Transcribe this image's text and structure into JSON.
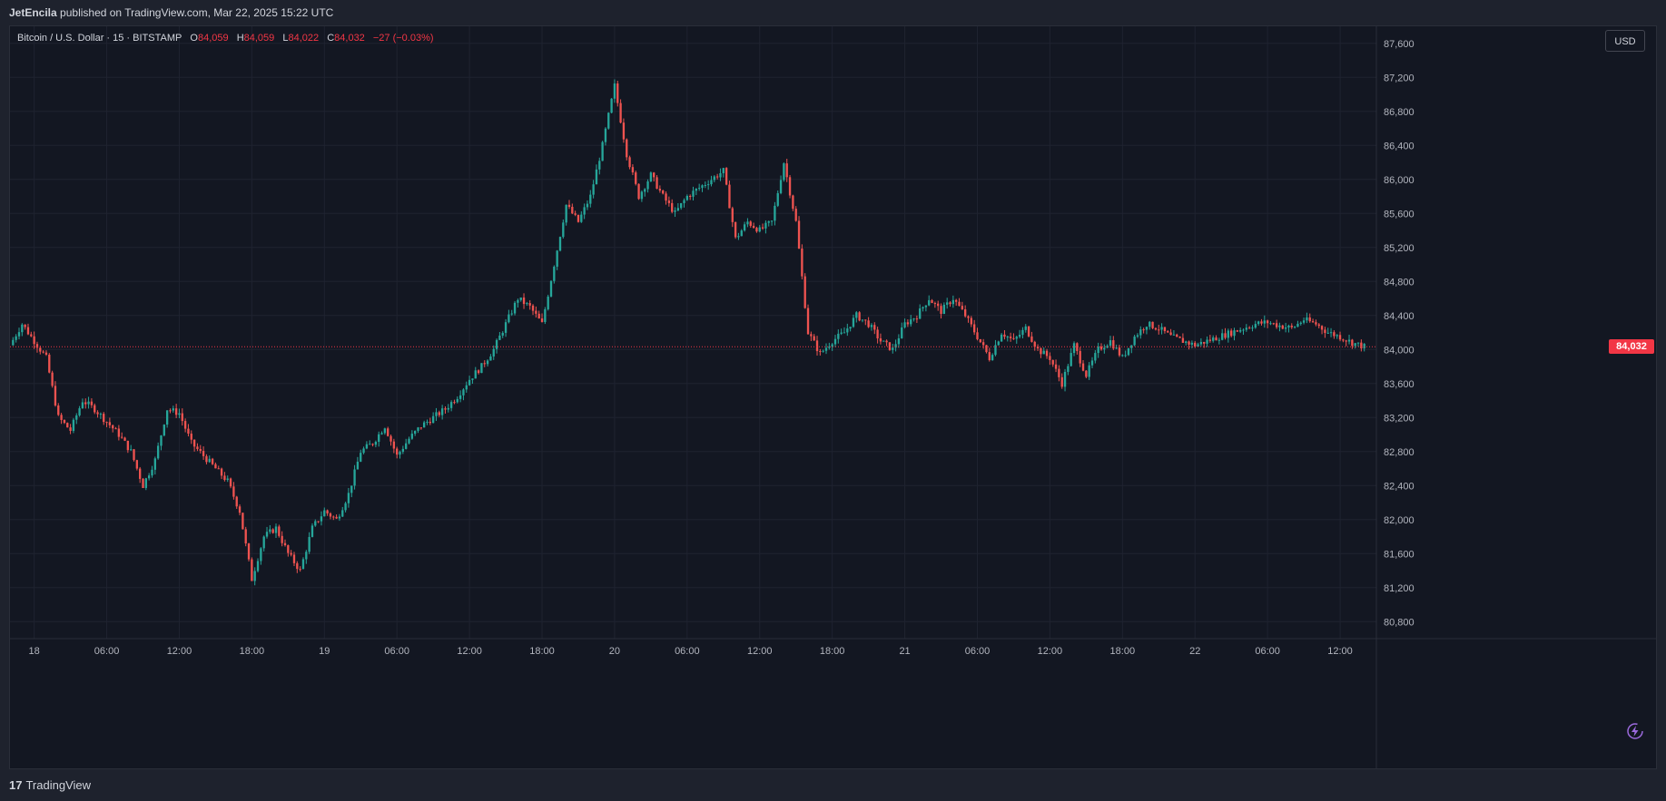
{
  "header": {
    "author": "JetEncila",
    "published_text": "published on TradingView.com, Mar 22, 2025 15:22 UTC"
  },
  "legend": {
    "symbol": "Bitcoin / U.S. Dollar · 15 · BITSTAMP",
    "o_label": "O",
    "o_value": "84,059",
    "h_label": "H",
    "h_value": "84,059",
    "l_label": "L",
    "l_value": "84,022",
    "c_label": "C",
    "c_value": "84,032",
    "change": "−27 (−0.03%)"
  },
  "currency_button": "USD",
  "last_price_label": "84,032",
  "footer": {
    "brand": "TradingView",
    "logo_icon": "tradingview-logo-icon"
  },
  "colors": {
    "up": "#26a69a",
    "down": "#ef5350",
    "background": "#131722",
    "grid": "#1f2330",
    "price_line": "#f23645"
  },
  "chart_data": {
    "type": "candlestick",
    "interval_minutes": 15,
    "ylim": [
      80600,
      87800
    ],
    "y_ticks": [
      "80,800",
      "81,200",
      "81,600",
      "82,000",
      "82,400",
      "82,800",
      "83,200",
      "83,600",
      "84,000",
      "84,400",
      "84,800",
      "85,200",
      "85,600",
      "86,000",
      "86,400",
      "86,800",
      "87,200",
      "87,600"
    ],
    "y_tick_values": [
      80800,
      81200,
      81600,
      82000,
      82400,
      82800,
      83200,
      83600,
      84000,
      84400,
      84800,
      85200,
      85600,
      86000,
      86400,
      86800,
      87200,
      87600
    ],
    "x_ticks": [
      "18",
      "06:00",
      "12:00",
      "18:00",
      "19",
      "06:00",
      "12:00",
      "18:00",
      "20",
      "06:00",
      "12:00",
      "18:00",
      "21",
      "06:00",
      "12:00",
      "18:00",
      "22",
      "06:00",
      "12:00"
    ],
    "x_tick_hours": [
      0,
      6,
      12,
      18,
      24,
      30,
      36,
      42,
      48,
      54,
      60,
      66,
      72,
      78,
      84,
      90,
      96,
      102,
      108
    ],
    "x_range_hours": [
      -2,
      111
    ],
    "last_price": 84032,
    "path": [
      [
        -2,
        84050
      ],
      [
        -1,
        84300
      ],
      [
        0,
        84100
      ],
      [
        1,
        83900
      ],
      [
        2,
        83200
      ],
      [
        3,
        83050
      ],
      [
        4,
        83400
      ],
      [
        5,
        83300
      ],
      [
        6,
        83150
      ],
      [
        7,
        83000
      ],
      [
        8,
        82800
      ],
      [
        9,
        82400
      ],
      [
        10,
        82700
      ],
      [
        11,
        83300
      ],
      [
        12,
        83250
      ],
      [
        13,
        82900
      ],
      [
        14,
        82750
      ],
      [
        15,
        82600
      ],
      [
        16,
        82450
      ],
      [
        17,
        82100
      ],
      [
        18,
        81300
      ],
      [
        19,
        81800
      ],
      [
        20,
        81900
      ],
      [
        21,
        81600
      ],
      [
        22,
        81400
      ],
      [
        23,
        81900
      ],
      [
        24,
        82100
      ],
      [
        25,
        82000
      ],
      [
        26,
        82300
      ],
      [
        27,
        82800
      ],
      [
        28,
        82900
      ],
      [
        29,
        83100
      ],
      [
        30,
        82750
      ],
      [
        31,
        82950
      ],
      [
        32,
        83100
      ],
      [
        33,
        83200
      ],
      [
        34,
        83300
      ],
      [
        35,
        83450
      ],
      [
        36,
        83650
      ],
      [
        37,
        83800
      ],
      [
        38,
        84000
      ],
      [
        39,
        84300
      ],
      [
        40,
        84600
      ],
      [
        41,
        84500
      ],
      [
        42,
        84300
      ],
      [
        43,
        85000
      ],
      [
        44,
        85700
      ],
      [
        45,
        85500
      ],
      [
        46,
        85800
      ],
      [
        47,
        86400
      ],
      [
        48,
        87100
      ],
      [
        49,
        86300
      ],
      [
        50,
        85800
      ],
      [
        51,
        86050
      ],
      [
        52,
        85800
      ],
      [
        53,
        85600
      ],
      [
        54,
        85800
      ],
      [
        55,
        85900
      ],
      [
        56,
        86000
      ],
      [
        57,
        86100
      ],
      [
        58,
        85300
      ],
      [
        59,
        85500
      ],
      [
        60,
        85400
      ],
      [
        61,
        85500
      ],
      [
        62,
        86200
      ],
      [
        63,
        85500
      ],
      [
        64,
        84200
      ],
      [
        65,
        83950
      ],
      [
        66,
        84100
      ],
      [
        67,
        84200
      ],
      [
        68,
        84400
      ],
      [
        69,
        84300
      ],
      [
        70,
        84100
      ],
      [
        71,
        84000
      ],
      [
        72,
        84300
      ],
      [
        73,
        84400
      ],
      [
        74,
        84600
      ],
      [
        75,
        84450
      ],
      [
        76,
        84600
      ],
      [
        77,
        84400
      ],
      [
        78,
        84150
      ],
      [
        79,
        83900
      ],
      [
        80,
        84200
      ],
      [
        81,
        84100
      ],
      [
        82,
        84250
      ],
      [
        83,
        84000
      ],
      [
        84,
        83900
      ],
      [
        85,
        83600
      ],
      [
        86,
        84050
      ],
      [
        87,
        83700
      ],
      [
        88,
        84000
      ],
      [
        89,
        84100
      ],
      [
        90,
        83900
      ],
      [
        91,
        84150
      ],
      [
        92,
        84300
      ],
      [
        93,
        84250
      ],
      [
        94,
        84150
      ],
      [
        95,
        84100
      ],
      [
        96,
        84050
      ],
      [
        97,
        84100
      ],
      [
        98,
        84150
      ],
      [
        99,
        84200
      ],
      [
        100,
        84250
      ],
      [
        101,
        84300
      ],
      [
        102,
        84320
      ],
      [
        103,
        84280
      ],
      [
        104,
        84250
      ],
      [
        105,
        84350
      ],
      [
        106,
        84300
      ],
      [
        107,
        84200
      ],
      [
        108,
        84150
      ],
      [
        109,
        84080
      ],
      [
        110,
        84032
      ]
    ]
  }
}
